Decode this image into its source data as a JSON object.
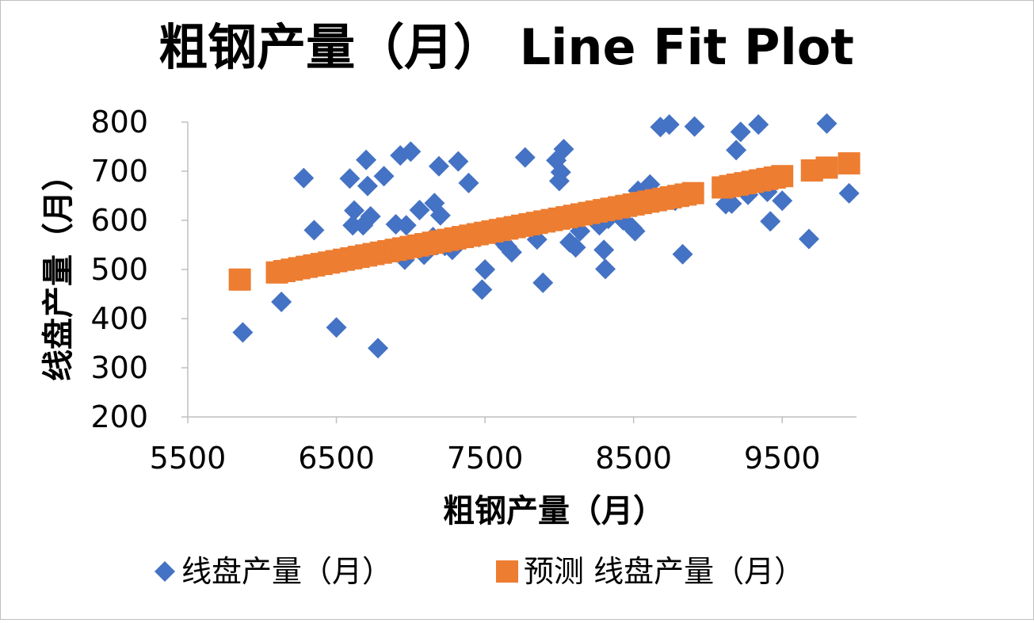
{
  "chart_data": {
    "type": "scatter",
    "title": "粗钢产量（月）  Line Fit  Plot",
    "xlabel": "粗钢产量（月）",
    "ylabel": "线盘产量（月）",
    "xlim": [
      5500,
      10000
    ],
    "ylim": [
      200,
      800
    ],
    "x_ticks": [
      5500,
      6500,
      7500,
      8500,
      9500
    ],
    "y_ticks": [
      200,
      300,
      400,
      500,
      600,
      700,
      800
    ],
    "grid": false,
    "legend_position": "bottom",
    "colors": {
      "series1": "#4472c4",
      "series2": "#ed7d31"
    },
    "series": [
      {
        "name": "线盘产量（月）",
        "marker": "diamond",
        "points": [
          [
            5870,
            372
          ],
          [
            6130,
            434
          ],
          [
            6280,
            686
          ],
          [
            6350,
            580
          ],
          [
            6500,
            382
          ],
          [
            6590,
            685
          ],
          [
            6610,
            590
          ],
          [
            6620,
            620
          ],
          [
            6640,
            527
          ],
          [
            6680,
            590
          ],
          [
            6700,
            723
          ],
          [
            6710,
            670
          ],
          [
            6730,
            608
          ],
          [
            6780,
            340
          ],
          [
            6820,
            690
          ],
          [
            6870,
            537
          ],
          [
            6900,
            592
          ],
          [
            6930,
            732
          ],
          [
            6940,
            530
          ],
          [
            6960,
            520
          ],
          [
            6970,
            590
          ],
          [
            7000,
            740
          ],
          [
            7060,
            621
          ],
          [
            7090,
            530
          ],
          [
            7150,
            566
          ],
          [
            7160,
            635
          ],
          [
            7180,
            550
          ],
          [
            7190,
            710
          ],
          [
            7200,
            610
          ],
          [
            7230,
            548
          ],
          [
            7280,
            540
          ],
          [
            7320,
            720
          ],
          [
            7390,
            676
          ],
          [
            7410,
            570
          ],
          [
            7460,
            566
          ],
          [
            7480,
            459
          ],
          [
            7500,
            500
          ],
          [
            7620,
            556
          ],
          [
            7650,
            546
          ],
          [
            7680,
            535
          ],
          [
            7770,
            728
          ],
          [
            7850,
            561
          ],
          [
            7890,
            473
          ],
          [
            7980,
            722
          ],
          [
            8000,
            680
          ],
          [
            8010,
            698
          ],
          [
            8030,
            745
          ],
          [
            8070,
            555
          ],
          [
            8110,
            545
          ],
          [
            8140,
            578
          ],
          [
            8270,
            590
          ],
          [
            8300,
            540
          ],
          [
            8310,
            501
          ],
          [
            8330,
            603
          ],
          [
            8430,
            600
          ],
          [
            8490,
            585
          ],
          [
            8510,
            578
          ],
          [
            8530,
            660
          ],
          [
            8610,
            673
          ],
          [
            8680,
            790
          ],
          [
            8740,
            795
          ],
          [
            8780,
            640
          ],
          [
            8830,
            531
          ],
          [
            8910,
            791
          ],
          [
            9120,
            633
          ],
          [
            9160,
            634
          ],
          [
            9190,
            743
          ],
          [
            9220,
            780
          ],
          [
            9270,
            652
          ],
          [
            9340,
            795
          ],
          [
            9400,
            658
          ],
          [
            9420,
            598
          ],
          [
            9500,
            640
          ],
          [
            9680,
            562
          ],
          [
            9800,
            797
          ],
          [
            9950,
            655
          ]
        ]
      },
      {
        "name": "预测 线盘产量（月）",
        "marker": "square",
        "intercept": 142.05,
        "slope": 0.05768,
        "x": [
          5850,
          6100,
          6150,
          6200,
          6250,
          6300,
          6350,
          6400,
          6450,
          6500,
          6550,
          6600,
          6650,
          6700,
          6750,
          6800,
          6850,
          6900,
          6950,
          7000,
          7050,
          7100,
          7150,
          7200,
          7250,
          7300,
          7350,
          7400,
          7450,
          7500,
          7550,
          7600,
          7650,
          7700,
          7750,
          7800,
          7850,
          7900,
          7950,
          8000,
          8050,
          8100,
          8150,
          8200,
          8250,
          8300,
          8350,
          8400,
          8450,
          8500,
          8550,
          8600,
          8650,
          8700,
          8750,
          8800,
          8850,
          8900,
          9100,
          9150,
          9200,
          9250,
          9300,
          9350,
          9400,
          9450,
          9500,
          9700,
          9800,
          9950
        ]
      }
    ]
  }
}
